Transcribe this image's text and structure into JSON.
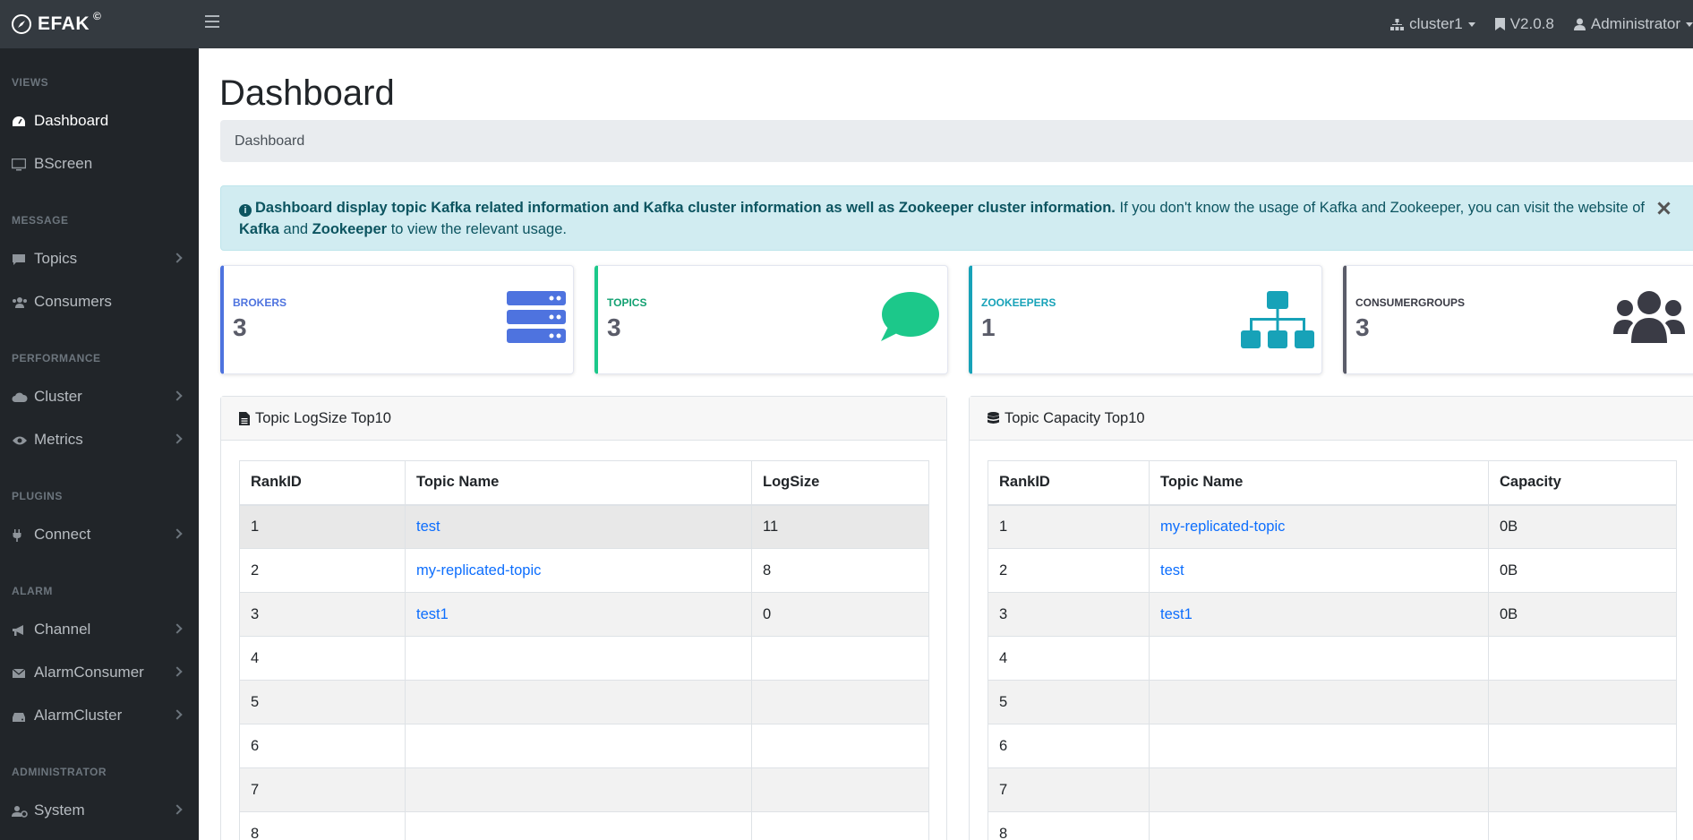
{
  "topbar": {
    "brand": "EFAK",
    "brand_mark": "©",
    "cluster": "cluster1",
    "version": "V2.0.8",
    "user": "Administrator"
  },
  "sidebar": {
    "sections": [
      {
        "heading": "VIEWS",
        "items": [
          {
            "label": "Dashboard",
            "icon": "dashboard-icon",
            "active": true
          },
          {
            "label": "BScreen",
            "icon": "desktop-icon"
          }
        ]
      },
      {
        "heading": "MESSAGE",
        "items": [
          {
            "label": "Topics",
            "icon": "comment-icon"
          },
          {
            "label": "Consumers",
            "icon": "users-icon"
          }
        ]
      },
      {
        "heading": "PERFORMANCE",
        "items": [
          {
            "label": "Cluster",
            "icon": "cloud-icon"
          },
          {
            "label": "Metrics",
            "icon": "eye-icon"
          }
        ]
      },
      {
        "heading": "PLUGINS",
        "items": [
          {
            "label": "Connect",
            "icon": "plug-icon"
          }
        ]
      },
      {
        "heading": "ALARM",
        "items": [
          {
            "label": "Channel",
            "icon": "bullhorn-icon"
          },
          {
            "label": "AlarmConsumer",
            "icon": "envelope-icon"
          },
          {
            "label": "AlarmCluster",
            "icon": "server-icon"
          }
        ]
      },
      {
        "heading": "ADMINISTRATOR",
        "items": [
          {
            "label": "System",
            "icon": "user-cog-icon"
          }
        ]
      }
    ]
  },
  "main": {
    "title": "Dashboard",
    "breadcrumb": "Dashboard",
    "alert": {
      "bold": "Dashboard display topic Kafka related information and Kafka cluster information as well as Zookeeper cluster information.",
      "text1": " If you don't know the usage of Kafka and Zookeeper, you can visit the website of ",
      "kafka": "Kafka",
      "and": " and ",
      "zookeeper": "Zookeeper",
      "text2": " to view the relevant usage."
    },
    "cards": [
      {
        "label": "BROKERS",
        "value": "3",
        "color": "#4e73df",
        "icon": "server-stack-icon"
      },
      {
        "label": "TOPICS",
        "value": "3",
        "color": "#1cc88a",
        "icon": "chat-bubble-icon"
      },
      {
        "label": "ZOOKEEPERS",
        "value": "1",
        "color": "#17a2b8",
        "icon": "sitemap-icon"
      },
      {
        "label": "CONSUMERGROUPS",
        "value": "3",
        "color": "#5a5c69",
        "icon": "users-group-icon"
      }
    ],
    "logsize": {
      "title": "Topic LogSize Top10",
      "columns": [
        "RankID",
        "Topic Name",
        "LogSize"
      ],
      "rows": [
        [
          "1",
          "test",
          "11"
        ],
        [
          "2",
          "my-replicated-topic",
          "8"
        ],
        [
          "3",
          "test1",
          "0"
        ],
        [
          "4",
          "",
          ""
        ],
        [
          "5",
          "",
          ""
        ],
        [
          "6",
          "",
          ""
        ],
        [
          "7",
          "",
          ""
        ],
        [
          "8",
          "",
          ""
        ]
      ]
    },
    "capacity": {
      "title": "Topic Capacity Top10",
      "columns": [
        "RankID",
        "Topic Name",
        "Capacity"
      ],
      "rows": [
        [
          "1",
          "my-replicated-topic",
          "0B"
        ],
        [
          "2",
          "test",
          "0B"
        ],
        [
          "3",
          "test1",
          "0B"
        ],
        [
          "4",
          "",
          ""
        ],
        [
          "5",
          "",
          ""
        ],
        [
          "6",
          "",
          ""
        ],
        [
          "7",
          "",
          ""
        ],
        [
          "8",
          "",
          ""
        ]
      ]
    }
  }
}
